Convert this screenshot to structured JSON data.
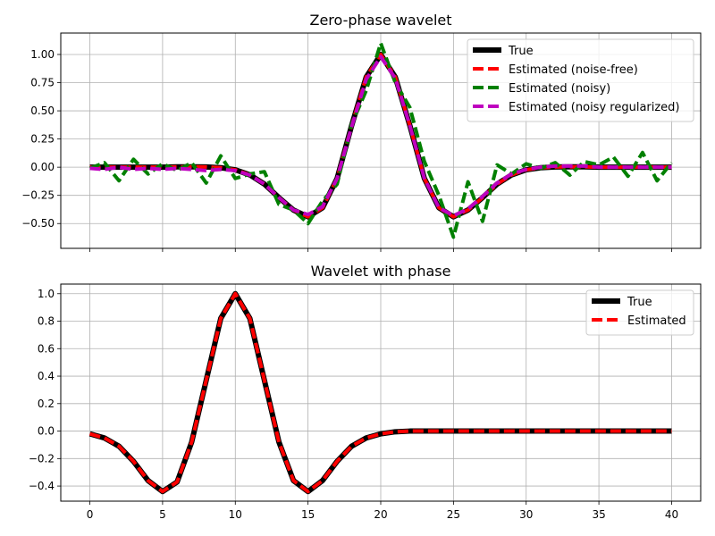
{
  "chart_data": [
    {
      "type": "line",
      "title": "Zero-phase wavelet",
      "xlabel": "",
      "ylabel": "",
      "xlim": [
        -2,
        42
      ],
      "ylim": [
        -0.72,
        1.19
      ],
      "xticks": [
        0,
        5,
        10,
        15,
        20,
        25,
        30,
        35,
        40
      ],
      "xtick_labels_visible": false,
      "yticks": [
        -0.5,
        -0.25,
        0.0,
        0.25,
        0.5,
        0.75,
        1.0
      ],
      "ytick_labels": [
        "−0.50",
        "−0.25",
        "0.00",
        "0.25",
        "0.50",
        "0.75",
        "1.00"
      ],
      "grid": true,
      "legend_position": "top-right",
      "x": [
        0,
        1,
        2,
        3,
        4,
        5,
        6,
        7,
        8,
        9,
        10,
        11,
        12,
        13,
        14,
        15,
        16,
        17,
        18,
        19,
        20,
        21,
        22,
        23,
        24,
        25,
        26,
        27,
        28,
        29,
        30,
        31,
        32,
        33,
        34,
        35,
        36,
        37,
        38,
        39,
        40
      ],
      "series": [
        {
          "name": "True",
          "color": "#000000",
          "style": "solid",
          "values": [
            0,
            0,
            0,
            0,
            0,
            0,
            0.003,
            0.003,
            0.002,
            -0.005,
            -0.023,
            -0.068,
            -0.15,
            -0.27,
            -0.38,
            -0.44,
            -0.36,
            -0.1,
            0.37,
            0.8,
            1.0,
            0.8,
            0.37,
            -0.1,
            -0.36,
            -0.44,
            -0.38,
            -0.27,
            -0.15,
            -0.068,
            -0.023,
            -0.005,
            0.002,
            0.003,
            0.003,
            0,
            0,
            0,
            0,
            0,
            0
          ]
        },
        {
          "name": "Estimated (noise-free)",
          "color": "#ff0000",
          "style": "dashed",
          "values": [
            0,
            0,
            0,
            0,
            0,
            0,
            0.003,
            0.003,
            0.002,
            -0.005,
            -0.023,
            -0.068,
            -0.15,
            -0.27,
            -0.38,
            -0.44,
            -0.36,
            -0.1,
            0.37,
            0.8,
            1.0,
            0.8,
            0.37,
            -0.1,
            -0.36,
            -0.44,
            -0.38,
            -0.27,
            -0.15,
            -0.068,
            -0.023,
            -0.005,
            0.002,
            0.003,
            0.003,
            0,
            0,
            0,
            0,
            0,
            0
          ]
        },
        {
          "name": "Estimated (noisy)",
          "color": "#008000",
          "style": "dashed",
          "values": [
            -0.01,
            0.04,
            -0.12,
            0.07,
            -0.06,
            0.03,
            -0.03,
            0.04,
            -0.14,
            0.1,
            -0.1,
            -0.06,
            -0.04,
            -0.33,
            -0.38,
            -0.5,
            -0.3,
            -0.15,
            0.38,
            0.68,
            1.1,
            0.75,
            0.53,
            0.05,
            -0.25,
            -0.62,
            -0.13,
            -0.48,
            0.02,
            -0.06,
            0.03,
            -0.01,
            0.04,
            -0.07,
            0.05,
            0.02,
            0.09,
            -0.08,
            0.13,
            -0.12,
            0.04
          ]
        },
        {
          "name": "Estimated (noisy regularized)",
          "color": "#bf00bf",
          "style": "dashed",
          "values": [
            -0.01,
            -0.02,
            0,
            -0.02,
            -0.01,
            -0.02,
            -0.01,
            -0.02,
            -0.03,
            -0.02,
            -0.03,
            -0.07,
            -0.15,
            -0.27,
            -0.38,
            -0.42,
            -0.35,
            -0.1,
            0.36,
            0.78,
            0.98,
            0.79,
            0.37,
            -0.1,
            -0.36,
            -0.43,
            -0.37,
            -0.26,
            -0.14,
            -0.06,
            -0.02,
            0,
            0.01,
            0.01,
            0.01,
            0,
            0,
            0,
            0,
            0,
            0
          ]
        }
      ]
    },
    {
      "type": "line",
      "title": "Wavelet with phase",
      "xlabel": "",
      "ylabel": "",
      "xlim": [
        -2,
        42
      ],
      "ylim": [
        -0.51,
        1.07
      ],
      "xticks": [
        0,
        5,
        10,
        15,
        20,
        25,
        30,
        35,
        40
      ],
      "xtick_labels": [
        "0",
        "5",
        "10",
        "15",
        "20",
        "25",
        "30",
        "35",
        "40"
      ],
      "yticks": [
        -0.4,
        -0.2,
        0.0,
        0.2,
        0.4,
        0.6,
        0.8,
        1.0
      ],
      "ytick_labels": [
        "−0.4",
        "−0.2",
        "0.0",
        "0.2",
        "0.4",
        "0.6",
        "0.8",
        "1.0"
      ],
      "grid": true,
      "legend_position": "top-right",
      "x": [
        0,
        1,
        2,
        3,
        4,
        5,
        6,
        7,
        8,
        9,
        10,
        11,
        12,
        13,
        14,
        15,
        16,
        17,
        18,
        19,
        20,
        21,
        22,
        23,
        24,
        25,
        26,
        27,
        28,
        29,
        30,
        31,
        32,
        33,
        34,
        35,
        36,
        37,
        38,
        39,
        40
      ],
      "series": [
        {
          "name": "True",
          "color": "#000000",
          "style": "solid",
          "values": [
            -0.02,
            -0.05,
            -0.11,
            -0.22,
            -0.36,
            -0.44,
            -0.37,
            -0.08,
            0.37,
            0.82,
            1.0,
            0.82,
            0.37,
            -0.08,
            -0.36,
            -0.44,
            -0.36,
            -0.22,
            -0.11,
            -0.05,
            -0.02,
            -0.005,
            0,
            0,
            0,
            0,
            0,
            0,
            0,
            0,
            0,
            0,
            0,
            0,
            0,
            0,
            0,
            0,
            0,
            0,
            0
          ]
        },
        {
          "name": "Estimated",
          "color": "#ff0000",
          "style": "dashed",
          "values": [
            -0.02,
            -0.05,
            -0.11,
            -0.22,
            -0.36,
            -0.44,
            -0.37,
            -0.08,
            0.37,
            0.82,
            1.0,
            0.82,
            0.37,
            -0.08,
            -0.36,
            -0.44,
            -0.36,
            -0.22,
            -0.11,
            -0.05,
            -0.02,
            -0.005,
            0,
            0,
            0,
            0,
            0,
            0,
            0,
            0,
            0,
            0,
            0,
            0,
            0,
            0,
            0,
            0,
            0,
            0,
            0
          ]
        }
      ]
    }
  ]
}
